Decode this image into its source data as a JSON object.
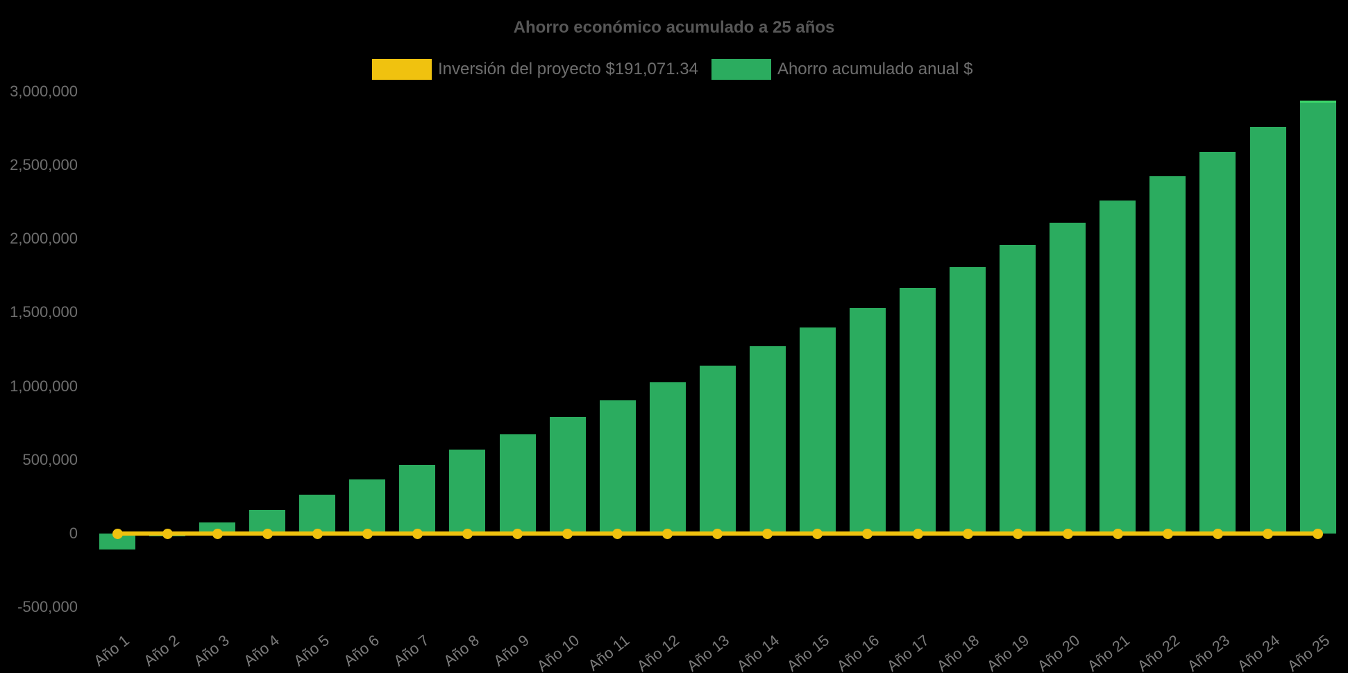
{
  "page": {
    "background_color": "#000000",
    "title": "Ahorro económico acumulado a 25 años"
  },
  "legend": {
    "investment_label": "Inversión del proyecto $191,071.34",
    "savings_label": "Ahorro acumulado anual $"
  },
  "chart_data": {
    "type": "bar",
    "title": "Ahorro económico acumulado a 25 años",
    "categories": [
      "Año 1",
      "Año 2",
      "Año 3",
      "Año 4",
      "Año 5",
      "Año 6",
      "Año 7",
      "Año 8",
      "Año 9",
      "Año 10",
      "Año 11",
      "Año 12",
      "Año 13",
      "Año 14",
      "Año 15",
      "Año 16",
      "Año 17",
      "Año 18",
      "Año 19",
      "Año 20",
      "Año 21",
      "Año 22",
      "Año 23",
      "Año 24",
      "Año 25"
    ],
    "series": [
      {
        "name": "Ahorro acumulado anual $",
        "type": "bar",
        "color": "#2bac5f",
        "last_bar_top_highlight_color": "#3cd66a",
        "values": [
          -110000,
          -20000,
          75000,
          160000,
          265000,
          365000,
          465000,
          570000,
          675000,
          790000,
          905000,
          1025000,
          1140000,
          1270000,
          1400000,
          1530000,
          1665000,
          1810000,
          1960000,
          2110000,
          2260000,
          2425000,
          2590000,
          2760000,
          2940000
        ]
      },
      {
        "name": "Inversión del proyecto $191,071.34",
        "type": "line",
        "color": "#f0c20f",
        "investment_amount_text": "$191,071.34",
        "plotted_level": 0,
        "values": [
          0,
          0,
          0,
          0,
          0,
          0,
          0,
          0,
          0,
          0,
          0,
          0,
          0,
          0,
          0,
          0,
          0,
          0,
          0,
          0,
          0,
          0,
          0,
          0,
          0
        ]
      }
    ],
    "xlabel": "",
    "ylabel": "",
    "y_axis": {
      "ticks": [
        3000000,
        2500000,
        2000000,
        1500000,
        1000000,
        500000,
        0,
        -500000
      ],
      "range": [
        -500000,
        3000000
      ],
      "grid": false
    },
    "legend_position": "top",
    "colors": {
      "bar": "#2bac5f",
      "line": "#f0c20f",
      "title_text": "#575757",
      "legend_text": "#6e6e6e",
      "ytick_text": "#6f6f6f",
      "xtick_text": "#7c7c7c"
    }
  }
}
